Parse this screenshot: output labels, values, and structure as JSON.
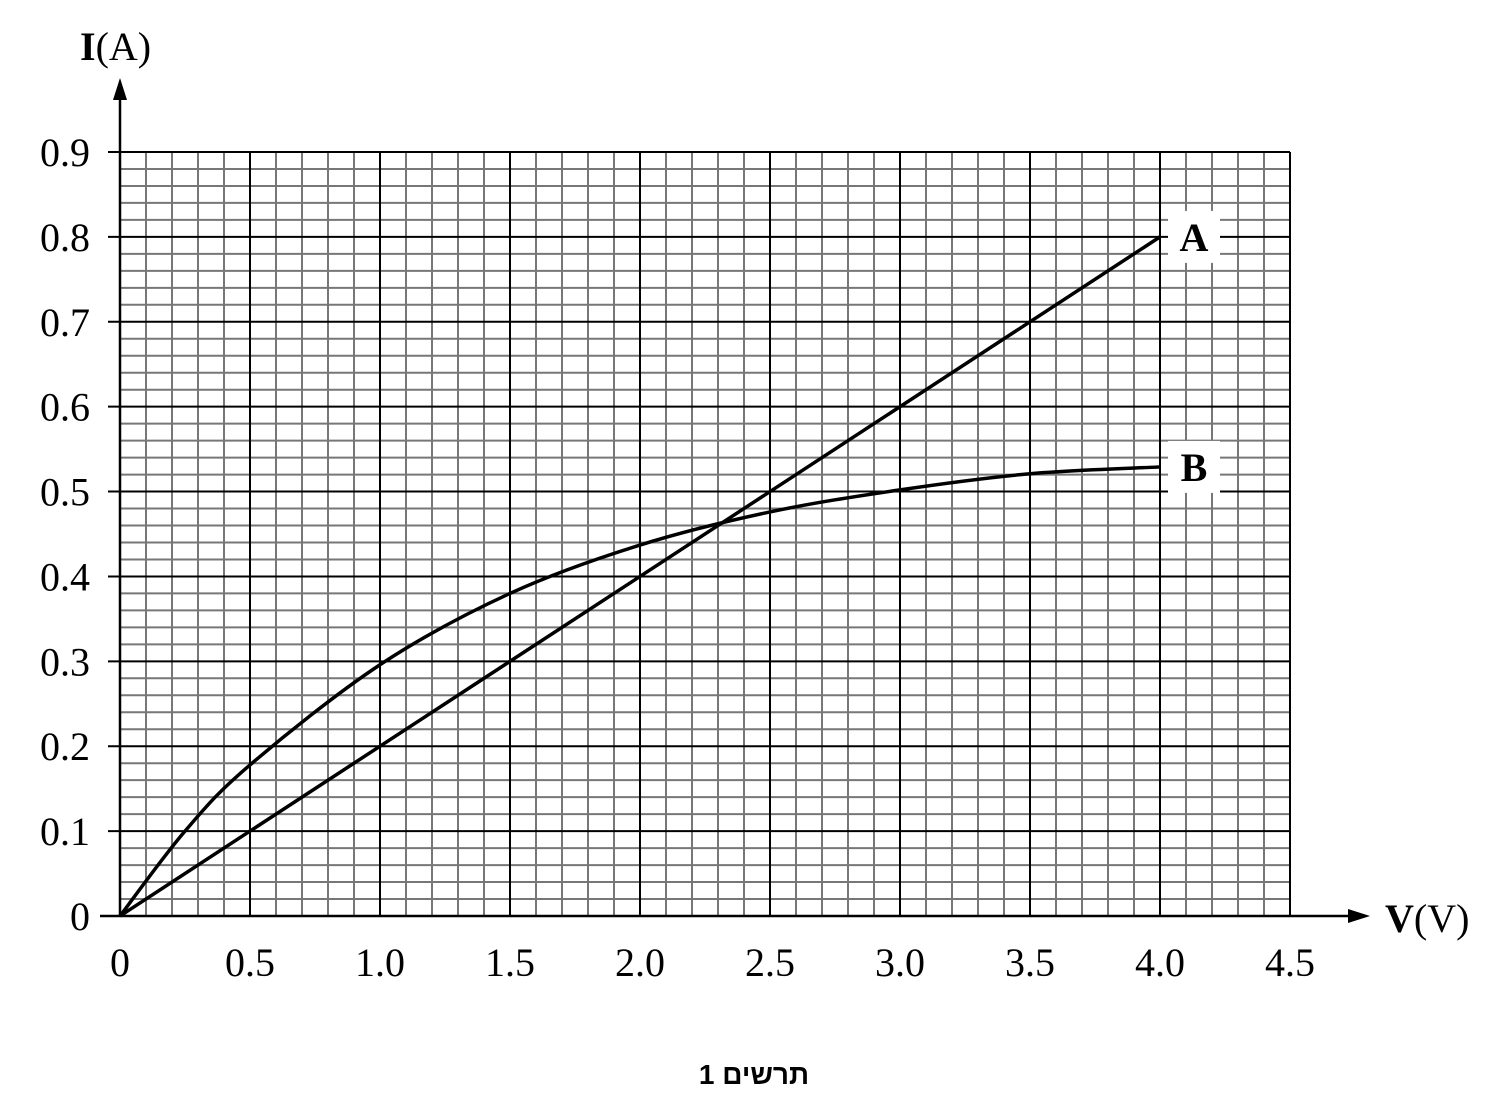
{
  "chart_data": {
    "type": "line",
    "x_label": {
      "symbol": "V",
      "unit": "(V)"
    },
    "y_label": {
      "symbol": "I",
      "unit": "(A)"
    },
    "caption": "תרשים 1",
    "xlim": [
      0,
      4.5
    ],
    "ylim": [
      0,
      0.9
    ],
    "xticks": [
      0,
      0.5,
      {
        "value": 1,
        "label": "1.0"
      },
      1.5,
      {
        "value": 2,
        "label": "2.0"
      },
      2.5,
      {
        "value": 3,
        "label": "3.0"
      },
      3.5,
      {
        "value": 4,
        "label": "4.0"
      },
      4.5
    ],
    "yticks": [
      0,
      0.1,
      0.2,
      0.3,
      0.4,
      0.5,
      0.6,
      0.7,
      0.8,
      0.9
    ],
    "grid": true,
    "series": [
      {
        "name": "A",
        "color": "#000000",
        "x": [
          0,
          4.0
        ],
        "values": [
          0,
          0.8
        ]
      },
      {
        "name": "B",
        "color": "#000000",
        "x": [
          0,
          0.25,
          0.5,
          1.0,
          1.5,
          2.0,
          2.5,
          3.0,
          3.5,
          4.0
        ],
        "values": [
          0,
          0.1,
          0.178,
          0.296,
          0.38,
          0.437,
          0.476,
          0.502,
          0.521,
          0.529
        ]
      }
    ]
  }
}
